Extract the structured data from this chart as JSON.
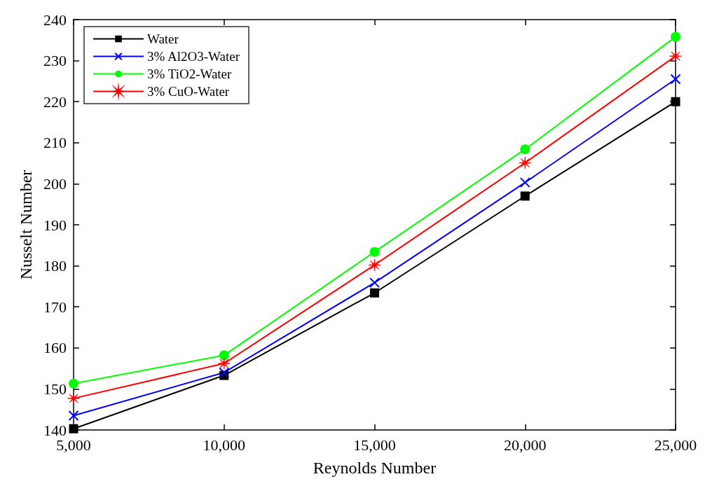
{
  "chart_data": {
    "type": "line",
    "xlabel": "Reynolds Number",
    "ylabel": "Nusselt Number",
    "x": [
      5000,
      10000,
      15000,
      20000,
      25000
    ],
    "xlim": [
      5000,
      25000
    ],
    "xticks": [
      {
        "value": 5000,
        "label": "5,000"
      },
      {
        "value": 10000,
        "label": "10,000"
      },
      {
        "value": 15000,
        "label": "15,000"
      },
      {
        "value": 20000,
        "label": "20,000"
      },
      {
        "value": 25000,
        "label": "25,000"
      }
    ],
    "ylim": [
      140,
      240
    ],
    "yticks": [
      140,
      150,
      160,
      170,
      180,
      190,
      200,
      210,
      220,
      230,
      240
    ],
    "grid": false,
    "legend": "top left",
    "line_style": "solid",
    "series": [
      {
        "name": "Water",
        "color": "#000000",
        "marker": "square",
        "values": [
          140.3,
          153.3,
          173.4,
          197,
          220
        ]
      },
      {
        "name": "3% Al2O3-Water",
        "color": "#0000ff",
        "marker": "cross",
        "values": [
          143.5,
          154,
          175.9,
          200.3,
          225.5
        ]
      },
      {
        "name": "3% TiO2-Water",
        "color": "#00ff00",
        "marker": "circle",
        "values": [
          151.3,
          158.2,
          183.4,
          208.4,
          235.8
        ]
      },
      {
        "name": "3% CuO-Water",
        "color": "#ff0000",
        "marker": "star",
        "values": [
          147.7,
          156.2,
          180.2,
          205.1,
          231.1
        ]
      }
    ]
  }
}
